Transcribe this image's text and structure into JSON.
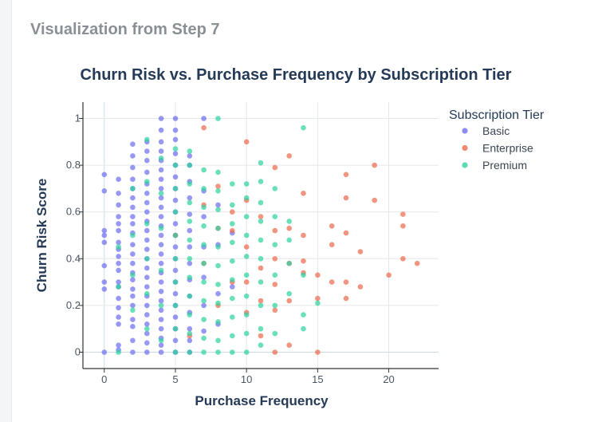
{
  "heading": "Visualization from Step 7",
  "colors": {
    "Basic": "#6f6ff0",
    "Enterprise": "#ec6b4f",
    "Premium": "#2fd2a0"
  },
  "chart_data": {
    "type": "scatter",
    "title": "Churn Risk vs. Purchase Frequency by Subscription Tier",
    "xlabel": "Purchase Frequency",
    "ylabel": "Churn Risk Score",
    "xlim": [
      -1.5,
      23.5
    ],
    "ylim": [
      -0.07,
      1.07
    ],
    "xticks": [
      "0",
      "5",
      "10",
      "15",
      "20"
    ],
    "yticks": [
      "0",
      "0.2",
      "0.4",
      "0.6",
      "0.8",
      "1"
    ],
    "grid": true,
    "legend": {
      "title": "Subscription Tier",
      "position": "top-right"
    },
    "series": [
      {
        "name": "Basic",
        "points": [
          [
            0,
            0.0
          ],
          [
            0,
            0.27
          ],
          [
            0,
            0.3
          ],
          [
            0,
            0.37
          ],
          [
            0,
            0.47
          ],
          [
            0,
            0.5
          ],
          [
            0,
            0.52
          ],
          [
            0,
            0.69
          ],
          [
            0,
            0.76
          ],
          [
            1,
            0.01
          ],
          [
            1,
            0.03
          ],
          [
            1,
            0.12
          ],
          [
            1,
            0.15
          ],
          [
            1,
            0.19
          ],
          [
            1,
            0.23
          ],
          [
            1,
            0.28
          ],
          [
            1,
            0.3
          ],
          [
            1,
            0.35
          ],
          [
            1,
            0.38
          ],
          [
            1,
            0.41
          ],
          [
            1,
            0.44
          ],
          [
            1,
            0.47
          ],
          [
            1,
            0.52
          ],
          [
            1,
            0.55
          ],
          [
            1,
            0.58
          ],
          [
            1,
            0.63
          ],
          [
            1,
            0.68
          ],
          [
            1,
            0.74
          ],
          [
            2,
            0.0
          ],
          [
            2,
            0.05
          ],
          [
            2,
            0.11
          ],
          [
            2,
            0.14
          ],
          [
            2,
            0.2
          ],
          [
            2,
            0.24
          ],
          [
            2,
            0.27
          ],
          [
            2,
            0.31
          ],
          [
            2,
            0.34
          ],
          [
            2,
            0.38
          ],
          [
            2,
            0.42
          ],
          [
            2,
            0.46
          ],
          [
            2,
            0.51
          ],
          [
            2,
            0.55
          ],
          [
            2,
            0.58
          ],
          [
            2,
            0.62
          ],
          [
            2,
            0.66
          ],
          [
            2,
            0.7
          ],
          [
            2,
            0.74
          ],
          [
            2,
            0.79
          ],
          [
            2,
            0.84
          ],
          [
            2,
            0.89
          ],
          [
            3,
            0.0
          ],
          [
            3,
            0.04
          ],
          [
            3,
            0.08
          ],
          [
            3,
            0.12
          ],
          [
            3,
            0.16
          ],
          [
            3,
            0.2
          ],
          [
            3,
            0.24
          ],
          [
            3,
            0.28
          ],
          [
            3,
            0.32
          ],
          [
            3,
            0.36
          ],
          [
            3,
            0.4
          ],
          [
            3,
            0.44
          ],
          [
            3,
            0.48
          ],
          [
            3,
            0.52
          ],
          [
            3,
            0.56
          ],
          [
            3,
            0.6
          ],
          [
            3,
            0.64
          ],
          [
            3,
            0.68
          ],
          [
            3,
            0.72
          ],
          [
            3,
            0.77
          ],
          [
            3,
            0.82
          ],
          [
            3,
            0.86
          ],
          [
            3,
            0.9
          ],
          [
            4,
            0.0
          ],
          [
            4,
            0.03
          ],
          [
            4,
            0.06
          ],
          [
            4,
            0.1
          ],
          [
            4,
            0.14
          ],
          [
            4,
            0.18
          ],
          [
            4,
            0.22
          ],
          [
            4,
            0.26
          ],
          [
            4,
            0.3
          ],
          [
            4,
            0.34
          ],
          [
            4,
            0.38
          ],
          [
            4,
            0.42
          ],
          [
            4,
            0.46
          ],
          [
            4,
            0.5
          ],
          [
            4,
            0.54
          ],
          [
            4,
            0.58
          ],
          [
            4,
            0.62
          ],
          [
            4,
            0.66
          ],
          [
            4,
            0.7
          ],
          [
            4,
            0.74
          ],
          [
            4,
            0.78
          ],
          [
            4,
            0.82
          ],
          [
            4,
            0.86
          ],
          [
            4,
            0.9
          ],
          [
            4,
            0.95
          ],
          [
            4,
            1.0
          ],
          [
            5,
            0.0
          ],
          [
            5,
            0.05
          ],
          [
            5,
            0.1
          ],
          [
            5,
            0.15
          ],
          [
            5,
            0.2
          ],
          [
            5,
            0.25
          ],
          [
            5,
            0.3
          ],
          [
            5,
            0.35
          ],
          [
            5,
            0.4
          ],
          [
            5,
            0.45
          ],
          [
            5,
            0.5
          ],
          [
            5,
            0.55
          ],
          [
            5,
            0.6
          ],
          [
            5,
            0.65
          ],
          [
            5,
            0.7
          ],
          [
            5,
            0.75
          ],
          [
            5,
            0.8
          ],
          [
            5,
            0.85
          ],
          [
            5,
            0.91
          ],
          [
            5,
            0.95
          ],
          [
            5,
            1.0
          ],
          [
            6,
            0.0
          ],
          [
            6,
            0.05
          ],
          [
            6,
            0.1
          ],
          [
            6,
            0.17
          ],
          [
            6,
            0.24
          ],
          [
            6,
            0.31
          ],
          [
            6,
            0.38
          ],
          [
            6,
            0.45
          ],
          [
            6,
            0.52
          ],
          [
            6,
            0.59
          ],
          [
            6,
            0.66
          ],
          [
            6,
            0.73
          ],
          [
            6,
            0.8
          ],
          [
            6,
            0.84
          ],
          [
            7,
            0.09
          ],
          [
            7,
            0.2
          ],
          [
            7,
            0.32
          ],
          [
            7,
            0.45
          ],
          [
            7,
            0.58
          ],
          [
            7,
            0.69
          ],
          [
            7,
            1.0
          ],
          [
            8,
            0.12
          ],
          [
            8,
            0.25
          ],
          [
            8,
            0.46
          ],
          [
            8,
            0.63
          ],
          [
            9,
            0.28
          ],
          [
            9,
            0.51
          ]
        ]
      },
      {
        "name": "Enterprise",
        "points": [
          [
            5,
            0.5
          ],
          [
            6,
            0.07
          ],
          [
            7,
            0.96
          ],
          [
            7,
            0.63
          ],
          [
            7,
            0.38
          ],
          [
            8,
            0.2
          ],
          [
            8,
            0.53
          ],
          [
            8,
            0.71
          ],
          [
            9,
            0.3
          ],
          [
            9,
            0.52
          ],
          [
            9,
            0.6
          ],
          [
            10,
            0.9
          ],
          [
            10,
            0.65
          ],
          [
            10,
            0.45
          ],
          [
            10,
            0.3
          ],
          [
            10,
            0.17
          ],
          [
            11,
            0.58
          ],
          [
            11,
            0.36
          ],
          [
            11,
            0.22
          ],
          [
            11,
            0.07
          ],
          [
            12,
            0.79
          ],
          [
            12,
            0.52
          ],
          [
            12,
            0.4
          ],
          [
            12,
            0.29
          ],
          [
            12,
            0.18
          ],
          [
            12,
            0.0
          ],
          [
            13,
            0.84
          ],
          [
            13,
            0.53
          ],
          [
            13,
            0.38
          ],
          [
            13,
            0.22
          ],
          [
            13,
            0.03
          ],
          [
            14,
            0.68
          ],
          [
            14,
            0.5
          ],
          [
            14,
            0.39
          ],
          [
            14,
            0.34
          ],
          [
            15,
            0.33
          ],
          [
            15,
            0.23
          ],
          [
            15,
            0.0
          ],
          [
            16,
            0.54
          ],
          [
            16,
            0.46
          ],
          [
            16,
            0.3
          ],
          [
            17,
            0.76
          ],
          [
            17,
            0.66
          ],
          [
            17,
            0.51
          ],
          [
            17,
            0.3
          ],
          [
            17,
            0.23
          ],
          [
            18,
            0.43
          ],
          [
            18,
            0.28
          ],
          [
            19,
            0.8
          ],
          [
            19,
            0.65
          ],
          [
            20,
            0.33
          ],
          [
            21,
            0.59
          ],
          [
            21,
            0.54
          ],
          [
            21,
            0.4
          ],
          [
            22,
            0.38
          ]
        ]
      },
      {
        "name": "Premium",
        "points": [
          [
            1,
            0.0
          ],
          [
            1,
            0.28
          ],
          [
            1,
            0.45
          ],
          [
            2,
            0.18
          ],
          [
            2,
            0.33
          ],
          [
            2,
            0.5
          ],
          [
            2,
            0.7
          ],
          [
            3,
            0.1
          ],
          [
            3,
            0.25
          ],
          [
            3,
            0.4
          ],
          [
            3,
            0.55
          ],
          [
            3,
            0.73
          ],
          [
            3,
            0.91
          ],
          [
            4,
            0.05
          ],
          [
            4,
            0.2
          ],
          [
            4,
            0.35
          ],
          [
            4,
            0.53
          ],
          [
            4,
            0.68
          ],
          [
            4,
            0.83
          ],
          [
            5,
            0.0
          ],
          [
            5,
            0.1
          ],
          [
            5,
            0.2
          ],
          [
            5,
            0.3
          ],
          [
            5,
            0.4
          ],
          [
            5,
            0.5
          ],
          [
            5,
            0.6
          ],
          [
            5,
            0.7
          ],
          [
            5,
            0.8
          ],
          [
            5,
            0.87
          ],
          [
            6,
            0.0
          ],
          [
            6,
            0.08
          ],
          [
            6,
            0.16
          ],
          [
            6,
            0.24
          ],
          [
            6,
            0.32
          ],
          [
            6,
            0.4
          ],
          [
            6,
            0.48
          ],
          [
            6,
            0.56
          ],
          [
            6,
            0.64
          ],
          [
            6,
            0.72
          ],
          [
            6,
            0.8
          ],
          [
            6,
            0.86
          ],
          [
            7,
            0.0
          ],
          [
            7,
            0.06
          ],
          [
            7,
            0.14
          ],
          [
            7,
            0.22
          ],
          [
            7,
            0.3
          ],
          [
            7,
            0.38
          ],
          [
            7,
            0.46
          ],
          [
            7,
            0.54
          ],
          [
            7,
            0.62
          ],
          [
            7,
            0.7
          ],
          [
            7,
            0.78
          ],
          [
            8,
            0.0
          ],
          [
            8,
            0.05
          ],
          [
            8,
            0.13
          ],
          [
            8,
            0.21
          ],
          [
            8,
            0.29
          ],
          [
            8,
            0.37
          ],
          [
            8,
            0.45
          ],
          [
            8,
            0.53
          ],
          [
            8,
            0.61
          ],
          [
            8,
            0.69
          ],
          [
            8,
            0.77
          ],
          [
            8,
            1.0
          ],
          [
            9,
            0.0
          ],
          [
            9,
            0.07
          ],
          [
            9,
            0.15
          ],
          [
            9,
            0.23
          ],
          [
            9,
            0.31
          ],
          [
            9,
            0.39
          ],
          [
            9,
            0.47
          ],
          [
            9,
            0.55
          ],
          [
            9,
            0.63
          ],
          [
            9,
            0.72
          ],
          [
            10,
            0.0
          ],
          [
            10,
            0.08
          ],
          [
            10,
            0.16
          ],
          [
            10,
            0.24
          ],
          [
            10,
            0.33
          ],
          [
            10,
            0.41
          ],
          [
            10,
            0.5
          ],
          [
            10,
            0.58
          ],
          [
            10,
            0.66
          ],
          [
            10,
            0.72
          ],
          [
            11,
            0.03
          ],
          [
            11,
            0.1
          ],
          [
            11,
            0.2
          ],
          [
            11,
            0.3
          ],
          [
            11,
            0.4
          ],
          [
            11,
            0.48
          ],
          [
            11,
            0.56
          ],
          [
            11,
            0.64
          ],
          [
            11,
            0.73
          ],
          [
            11,
            0.81
          ],
          [
            12,
            0.08
          ],
          [
            12,
            0.2
          ],
          [
            12,
            0.33
          ],
          [
            12,
            0.46
          ],
          [
            12,
            0.58
          ],
          [
            12,
            0.7
          ],
          [
            13,
            0.25
          ],
          [
            13,
            0.38
          ],
          [
            13,
            0.48
          ],
          [
            13,
            0.56
          ],
          [
            14,
            0.1
          ],
          [
            14,
            0.16
          ],
          [
            14,
            0.33
          ],
          [
            14,
            0.96
          ],
          [
            15,
            0.21
          ]
        ]
      }
    ]
  }
}
